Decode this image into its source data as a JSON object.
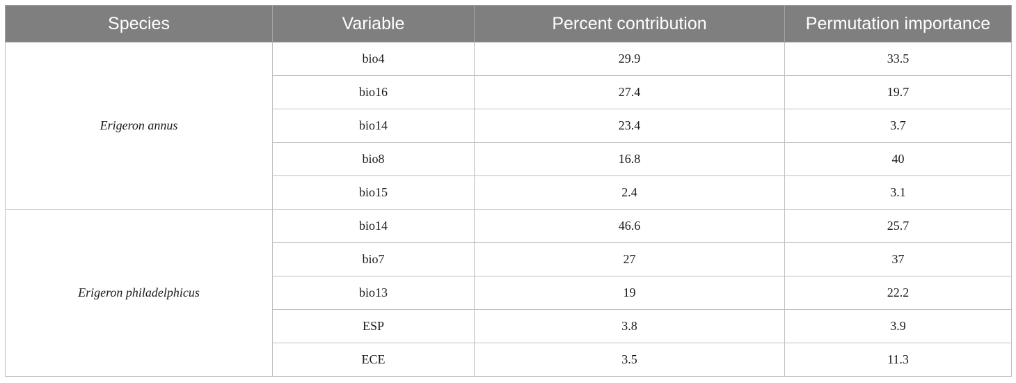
{
  "table": {
    "headers": [
      "Species",
      "Variable",
      "Percent contribution",
      "Permutation importance"
    ],
    "groups": [
      {
        "species": "Erigeron annus",
        "rows": [
          {
            "variable": "bio4",
            "percent": "29.9",
            "permutation": "33.5"
          },
          {
            "variable": "bio16",
            "percent": "27.4",
            "permutation": "19.7"
          },
          {
            "variable": "bio14",
            "percent": "23.4",
            "permutation": "3.7"
          },
          {
            "variable": "bio8",
            "percent": "16.8",
            "permutation": "40"
          },
          {
            "variable": "bio15",
            "percent": "2.4",
            "permutation": "3.1"
          }
        ]
      },
      {
        "species": "Erigeron philadelphicus",
        "rows": [
          {
            "variable": "bio14",
            "percent": "46.6",
            "permutation": "25.7"
          },
          {
            "variable": "bio7",
            "percent": "27",
            "permutation": "37"
          },
          {
            "variable": "bio13",
            "percent": "19",
            "permutation": "22.2"
          },
          {
            "variable": "ESP",
            "percent": "3.8",
            "permutation": "3.9"
          },
          {
            "variable": "ECE",
            "percent": "3.5",
            "permutation": "11.3"
          }
        ]
      }
    ]
  }
}
